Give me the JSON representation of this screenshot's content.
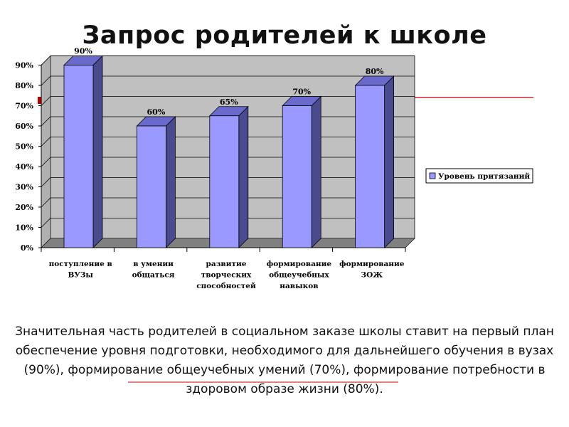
{
  "slide": {
    "title": "Запрос родителей к школе",
    "caption": "Значительная часть родителей в социальном заказе школы ставит на первый план обеспечение уровня подготовки, необходимого для дальнейшего обучения в вузах  (90%), формирование общеучебных умений (70%), формирование потребности в здоровом образе жизни (80%).",
    "colors": {
      "accent_line": "#c00000"
    }
  },
  "chart_data": {
    "type": "bar",
    "categories": [
      [
        "поступление в",
        "ВУЗы"
      ],
      [
        "в умении",
        "общаться"
      ],
      [
        "развитие",
        "творческих",
        "способностей"
      ],
      [
        "формирование",
        "общеучебных",
        "навыков"
      ],
      [
        "формирование",
        "ЗОЖ"
      ]
    ],
    "series": [
      {
        "name": "Уровень притязаний",
        "values": [
          90,
          60,
          65,
          70,
          80
        ],
        "color": "#9999ff",
        "side_color": "#4a4a8f"
      }
    ],
    "data_labels": [
      "90%",
      "60%",
      "65%",
      "70%",
      "80%"
    ],
    "y_ticks": [
      "0%",
      "10%",
      "20%",
      "30%",
      "40%",
      "50%",
      "60%",
      "70%",
      "80%",
      "90%"
    ],
    "ylim": [
      0,
      90
    ],
    "grid": true,
    "legend_position": "right",
    "colors": {
      "plot_wall": "#c0c0c0",
      "plot_floor": "#808080"
    }
  }
}
